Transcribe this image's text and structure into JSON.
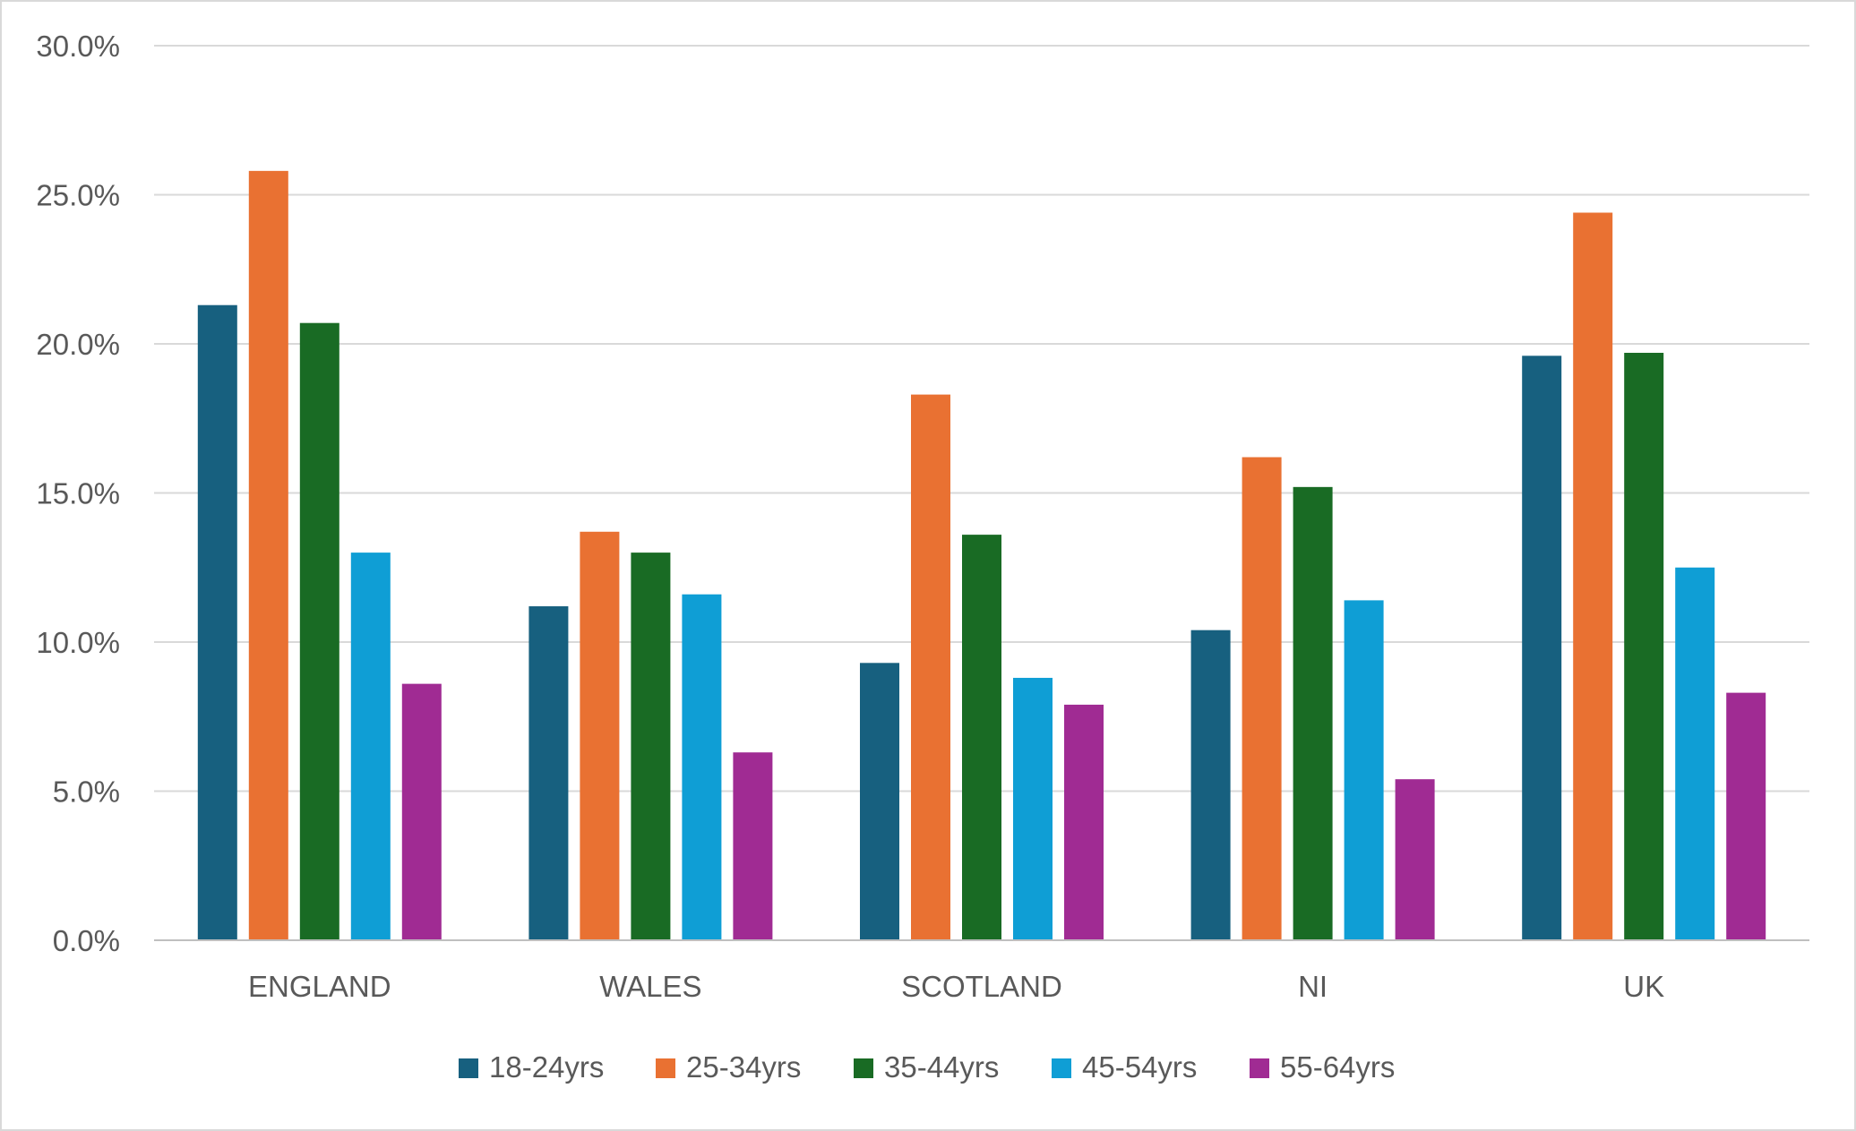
{
  "chart_data": {
    "type": "bar",
    "categories": [
      "ENGLAND",
      "WALES",
      "SCOTLAND",
      "NI",
      "UK"
    ],
    "series": [
      {
        "name": "18-24yrs",
        "color": "#17607f",
        "values": [
          21.3,
          11.2,
          9.3,
          10.4,
          19.6
        ]
      },
      {
        "name": "25-34yrs",
        "color": "#e97132",
        "values": [
          25.8,
          13.7,
          18.3,
          16.2,
          24.4
        ]
      },
      {
        "name": "35-44yrs",
        "color": "#196b24",
        "values": [
          20.7,
          13.0,
          13.6,
          15.2,
          19.7
        ]
      },
      {
        "name": "45-54yrs",
        "color": "#0f9ed5",
        "values": [
          13.0,
          11.6,
          8.8,
          11.4,
          12.5
        ]
      },
      {
        "name": "55-64yrs",
        "color": "#a02b93",
        "values": [
          8.6,
          6.3,
          7.9,
          5.4,
          8.3
        ]
      }
    ],
    "y_ticks": [
      "0.0%",
      "5.0%",
      "10.0%",
      "15.0%",
      "20.0%",
      "25.0%",
      "30.0%"
    ],
    "ylim": [
      0,
      30
    ],
    "xlabel": "",
    "ylabel": "",
    "grid": true,
    "legend_position": "bottom"
  }
}
